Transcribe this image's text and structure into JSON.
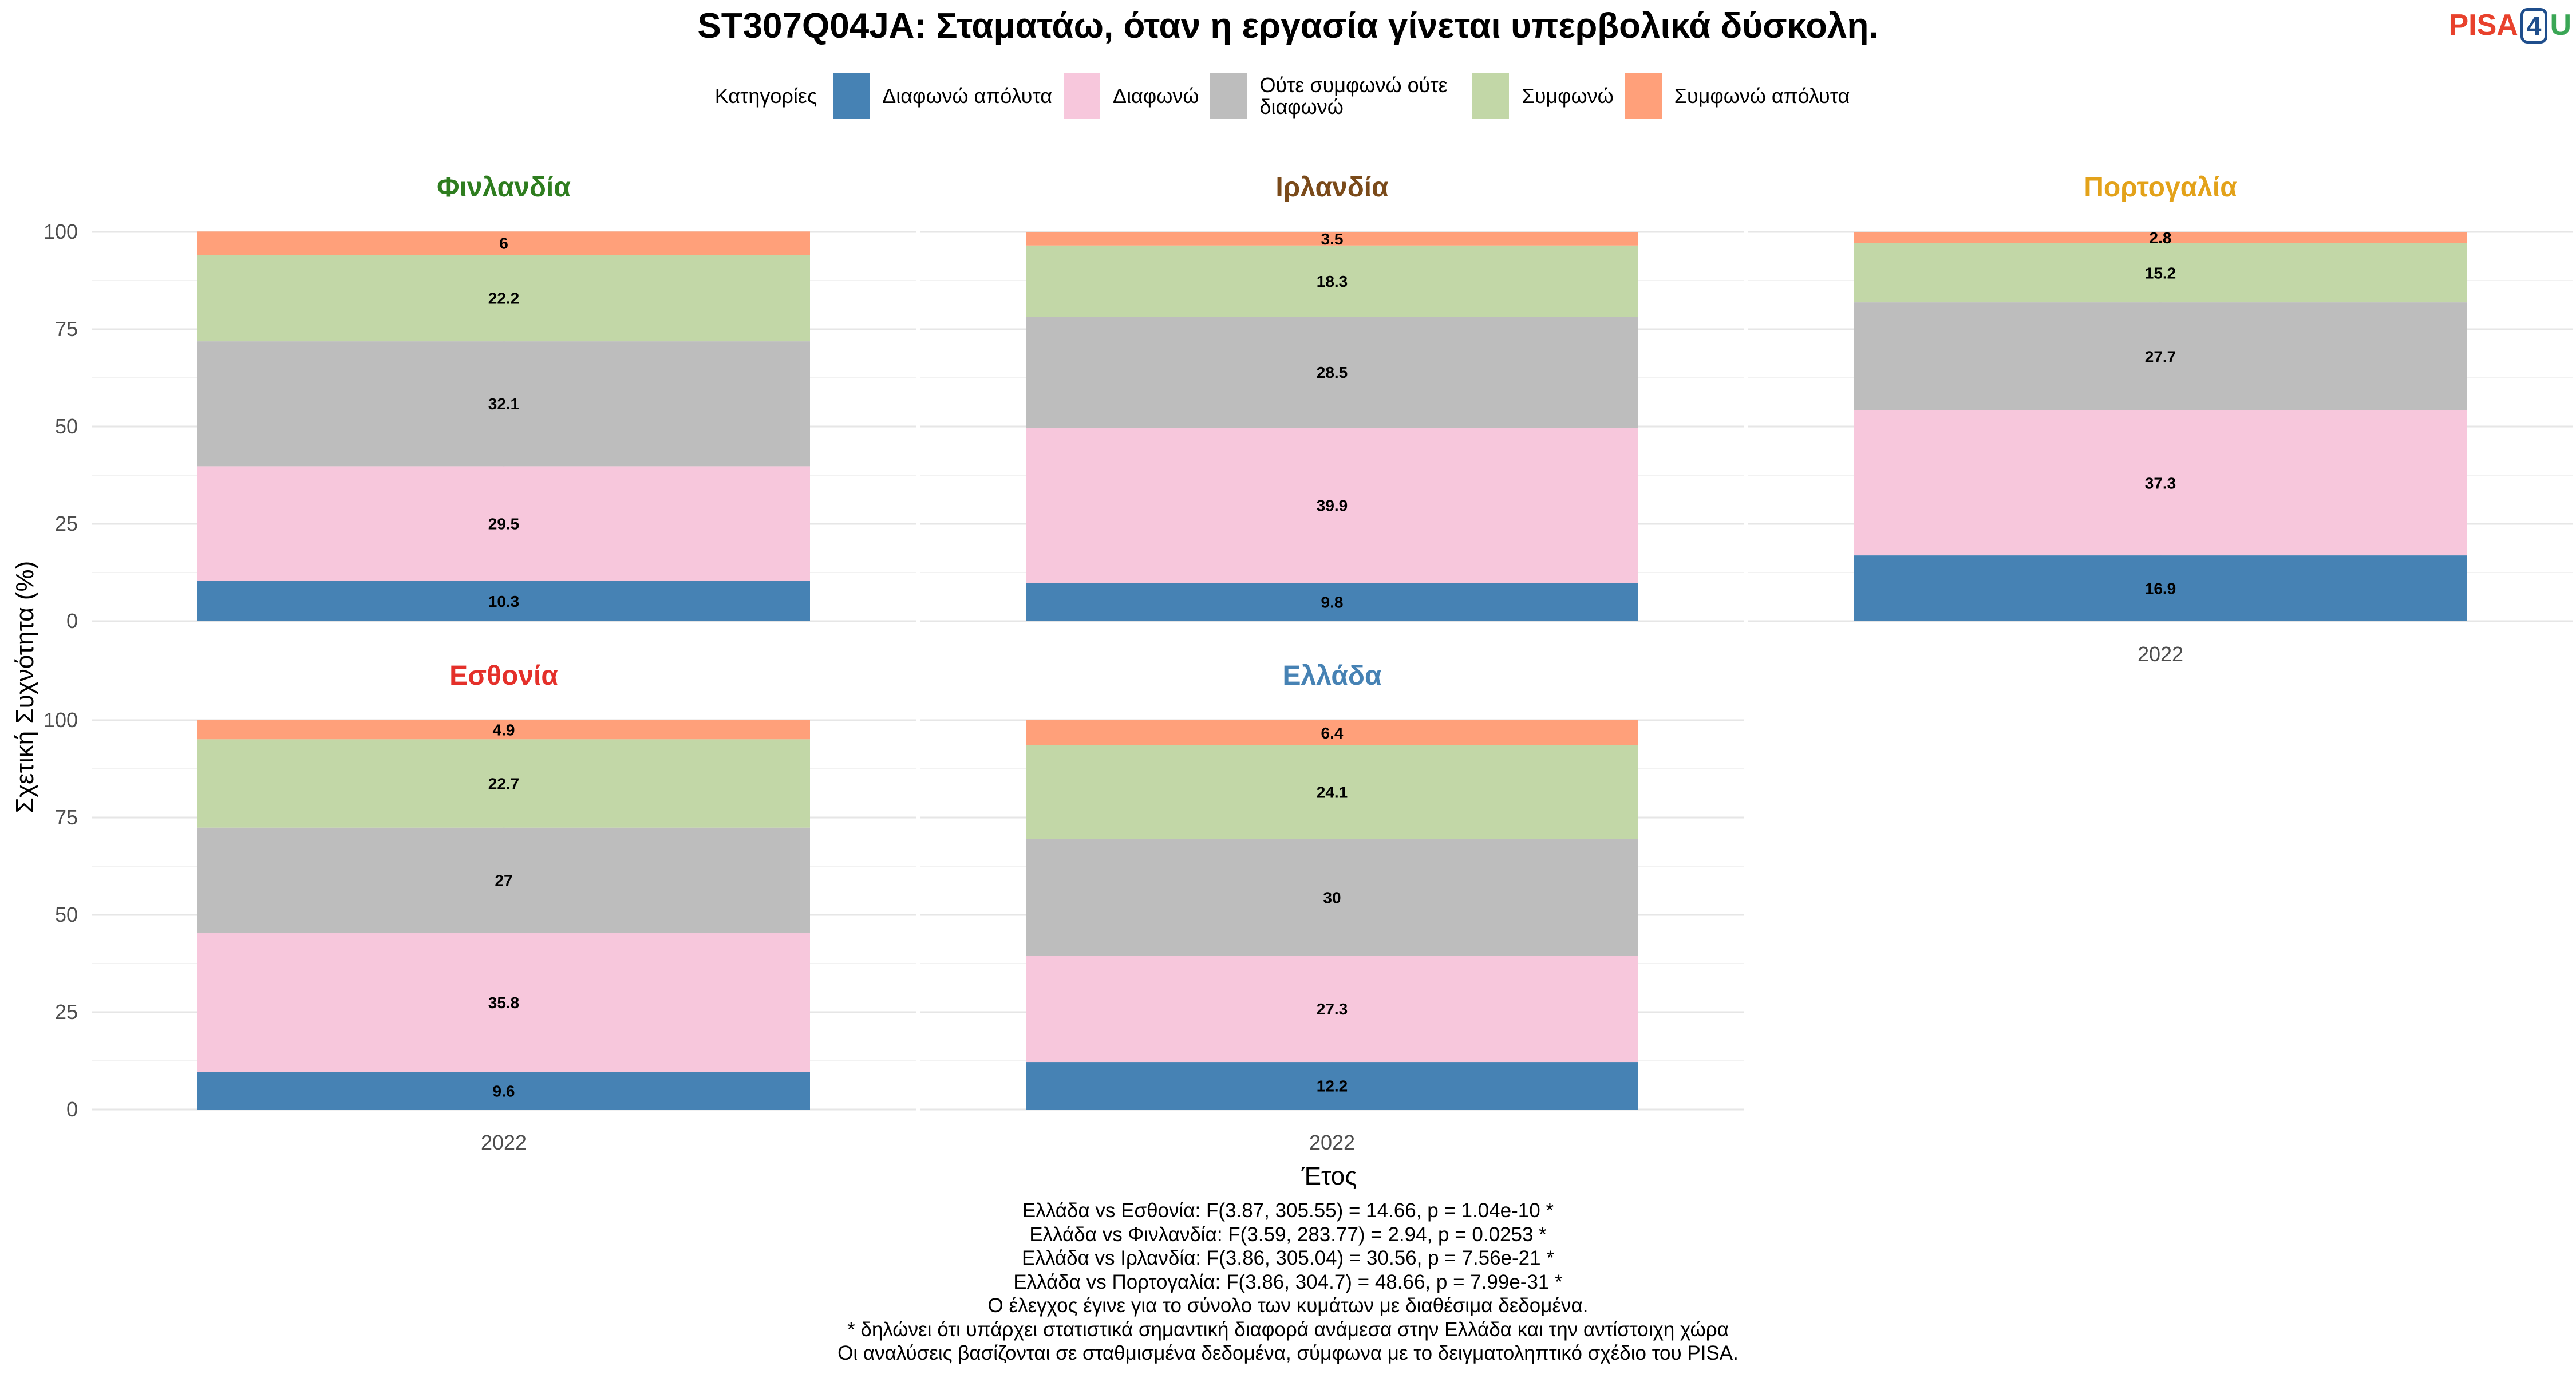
{
  "title": "ST307Q04JA: Σταματάω, όταν η εργασία γίνεται υπερβολικά δύσκολη.",
  "logo": {
    "pisa": "PISA",
    "four": "4",
    "u": "U"
  },
  "legend": {
    "title": "Κατηγορίες",
    "items": [
      {
        "label": "Διαφωνώ απόλυτα",
        "color": "#4682b4"
      },
      {
        "label": "Διαφωνώ",
        "color": "#f7c7dc"
      },
      {
        "label": "Ούτε συμφωνώ ούτε διαφωνώ",
        "color": "#bdbdbd"
      },
      {
        "label": "Συμφωνώ",
        "color": "#c2d7a7"
      },
      {
        "label": "Συμφωνώ απόλυτα",
        "color": "#ffa07a"
      }
    ]
  },
  "chart_data": {
    "type": "bar",
    "stacked": true,
    "xlabel": "Έτος",
    "ylabel": "Σχετική Συχνότητα (%)",
    "ylim": [
      0,
      100
    ],
    "yticks": [
      0,
      25,
      50,
      75,
      100
    ],
    "categories": [
      "2022"
    ],
    "series_names": [
      "Διαφωνώ απόλυτα",
      "Διαφωνώ",
      "Ούτε συμφωνώ ούτε διαφωνώ",
      "Συμφωνώ",
      "Συμφωνώ απόλυτα"
    ],
    "colors": [
      "#4682b4",
      "#f7c7dc",
      "#bdbdbd",
      "#c2d7a7",
      "#ffa07a"
    ],
    "panels": [
      {
        "name": "Φινλανδία",
        "color": "#2e7d1f",
        "values": [
          10.3,
          29.5,
          32.1,
          22.2,
          6
        ],
        "labels": [
          "10.3",
          "29.5",
          "32.1",
          "22.2",
          "6"
        ]
      },
      {
        "name": "Ιρλανδία",
        "color": "#7a4a1a",
        "values": [
          9.8,
          39.9,
          28.5,
          18.3,
          3.5
        ],
        "labels": [
          "9.8",
          "39.9",
          "28.5",
          "18.3",
          "3.5"
        ]
      },
      {
        "name": "Πορτογαλία",
        "color": "#e3a21a",
        "values": [
          16.9,
          37.3,
          27.7,
          15.2,
          2.8
        ],
        "labels": [
          "16.9",
          "37.3",
          "27.7",
          "15.2",
          "2.8"
        ]
      },
      {
        "name": "Εσθονία",
        "color": "#e4302a",
        "values": [
          9.6,
          35.8,
          27,
          22.7,
          4.9
        ],
        "labels": [
          "9.6",
          "35.8",
          "27",
          "22.7",
          "4.9"
        ]
      },
      {
        "name": "Ελλάδα",
        "color": "#4682b4",
        "values": [
          12.2,
          27.3,
          30,
          24.1,
          6.4
        ],
        "labels": [
          "12.2",
          "27.3",
          "30",
          "24.1",
          "6.4"
        ]
      }
    ]
  },
  "caption": [
    "Ελλάδα vs Εσθονία: F(3.87, 305.55) = 14.66, p = 1.04e-10 *",
    "Ελλάδα vs Φινλανδία: F(3.59, 283.77) = 2.94, p = 0.0253 *",
    "Ελλάδα vs Ιρλανδία: F(3.86, 305.04) = 30.56, p = 7.56e-21 *",
    "Ελλάδα vs Πορτογαλία: F(3.86, 304.7) = 48.66, p = 7.99e-31 *",
    "Ο έλεγχος έγινε για το σύνολο των κυμάτων με διαθέσιμα δεδομένα.",
    "* δηλώνει ότι υπάρχει στατιστικά σημαντική διαφορά ανάμεσα στην Ελλάδα και την αντίστοιχη χώρα",
    "Οι αναλύσεις βασίζονται σε σταθμισμένα δεδομένα, σύμφωνα με το δειγματοληπτικό σχέδιο του PISA."
  ]
}
